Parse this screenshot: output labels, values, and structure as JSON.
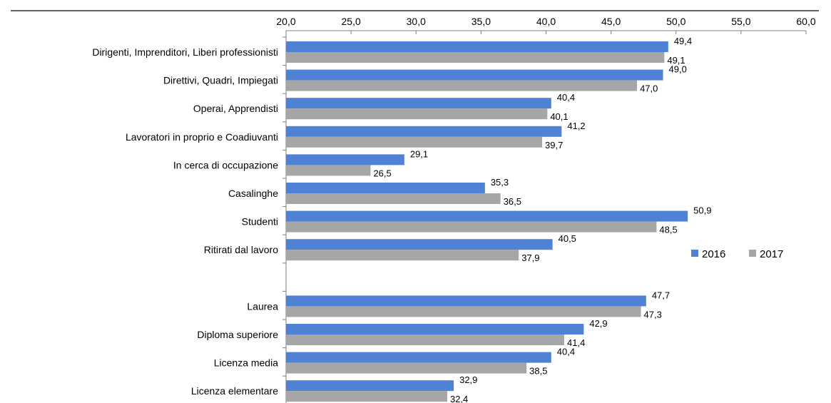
{
  "chart_data": {
    "type": "bar",
    "orientation": "horizontal",
    "categories": [
      "Dirigenti, Imprenditori, Liberi professionisti",
      "Direttivi, Quadri, Impiegati",
      "Operai, Apprendisti",
      "Lavoratori in proprio e Coadiuvanti",
      "In cerca di occupazione",
      "Casalinghe",
      "Studenti",
      "Ritirati dal lavoro",
      "",
      "Laurea",
      "Diploma superiore",
      "Licenza media",
      "Licenza elementare"
    ],
    "series": [
      {
        "name": "2016",
        "color": "#4F81D5",
        "values": [
          49.4,
          49.0,
          40.4,
          41.2,
          29.1,
          35.3,
          50.9,
          40.5,
          null,
          47.7,
          42.9,
          40.4,
          32.9
        ],
        "labels": [
          "49,4",
          "49,0",
          "40,4",
          "41,2",
          "29,1",
          "35,3",
          "50,9",
          "40,5",
          "",
          "47,7",
          "42,9",
          "40,4",
          "32,9"
        ]
      },
      {
        "name": "2017",
        "color": "#A6A6A6",
        "values": [
          49.1,
          47.0,
          40.1,
          39.7,
          26.5,
          36.5,
          48.5,
          37.9,
          null,
          47.3,
          41.4,
          38.5,
          32.4
        ],
        "labels": [
          "49,1",
          "47,0",
          "40,1",
          "39,7",
          "26,5",
          "36,5",
          "48,5",
          "37,9",
          "",
          "47,3",
          "41,4",
          "38,5",
          "32,4"
        ]
      }
    ],
    "xlim": [
      20,
      60
    ],
    "ticks": [
      20,
      25,
      30,
      35,
      40,
      45,
      50,
      55,
      60
    ],
    "tick_labels": [
      "20,0",
      "25,0",
      "30,0",
      "35,0",
      "40,0",
      "45,0",
      "50,0",
      "55,0",
      "60,0"
    ],
    "axis_position": "top",
    "grid": false,
    "legend_position": "right"
  }
}
